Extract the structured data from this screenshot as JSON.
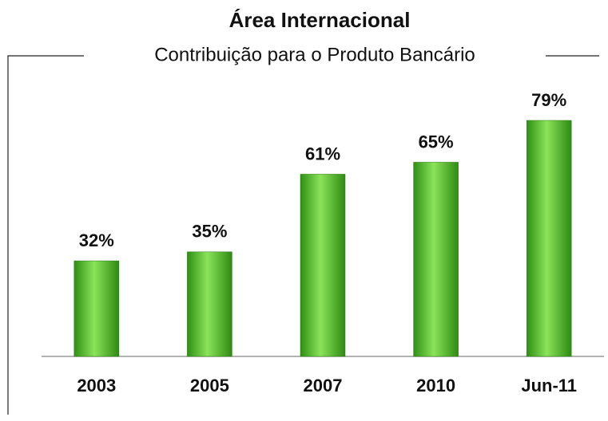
{
  "chart_data": {
    "type": "bar",
    "title": "Área Internacional",
    "subtitle": "Contribuição para o Produto Bancário",
    "categories": [
      "2003",
      "2005",
      "2007",
      "2010",
      "Jun-11"
    ],
    "values": [
      32,
      35,
      61,
      65,
      79
    ],
    "value_labels": [
      "32%",
      "35%",
      "61%",
      "65%",
      "79%"
    ],
    "color": "#4cb82a"
  }
}
